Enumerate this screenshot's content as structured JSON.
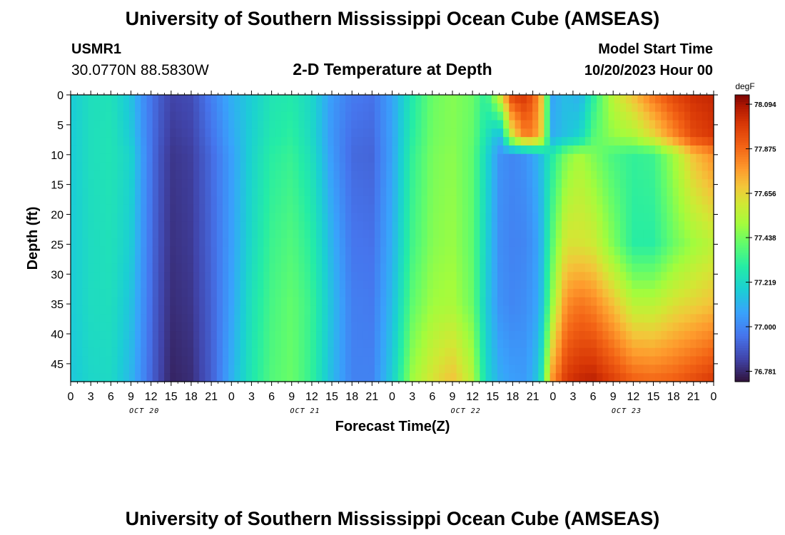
{
  "chart_data": {
    "type": "heatmap",
    "title": "University of Southern Mississippi Ocean Cube (AMSEAS)",
    "subtitle": "2-D Temperature at Depth",
    "station_id": "USMR1",
    "station_location": "30.0770N  88.5830W",
    "model_label": "Model Start Time",
    "model_time": "10/20/2023 Hour 00",
    "xlabel": "Forecast Time(Z)",
    "ylabel": "Depth (ft)",
    "x_hours": [
      0,
      3,
      6,
      9,
      12,
      15,
      18,
      21,
      24,
      27,
      30,
      33,
      36,
      39,
      42,
      45,
      48,
      51,
      54,
      57,
      60,
      63,
      66,
      69,
      72,
      75,
      78,
      81,
      84,
      87,
      90,
      93,
      96
    ],
    "x_tick_labels": [
      "0",
      "3",
      "6",
      "9",
      "12",
      "15",
      "18",
      "21",
      "0",
      "3",
      "6",
      "9",
      "12",
      "15",
      "18",
      "21",
      "0",
      "3",
      "6",
      "9",
      "12",
      "15",
      "18",
      "21",
      "0",
      "3",
      "6",
      "9",
      "12",
      "15",
      "18",
      "21",
      "0"
    ],
    "day_labels": [
      {
        "label": "OCT 20",
        "hour": 11
      },
      {
        "label": "OCT 21",
        "hour": 35
      },
      {
        "label": "OCT 22",
        "hour": 59
      },
      {
        "label": "OCT 23",
        "hour": 83
      }
    ],
    "xlim": [
      0,
      96
    ],
    "y_ticks": [
      0,
      5,
      10,
      15,
      20,
      25,
      30,
      35,
      40,
      45
    ],
    "y_tick_labels": [
      "0",
      "5",
      "10",
      "15",
      "20",
      "25",
      "30",
      "35",
      "40",
      "45"
    ],
    "ylim": [
      0,
      48
    ],
    "colorbar": {
      "units": "degF",
      "ticks": [
        78.094,
        77.875,
        77.656,
        77.438,
        77.219,
        77.0,
        76.781
      ],
      "tick_labels": [
        "78.094",
        "77.875",
        "77.656",
        "77.438",
        "77.219",
        "77.000",
        "76.781"
      ],
      "vmin": 76.73,
      "vmax": 78.14
    },
    "temperature_profile": [
      {
        "hour": 0,
        "values": [
          77.17,
          77.17,
          77.17,
          77.17,
          77.17,
          77.16
        ]
      },
      {
        "hour": 3,
        "values": [
          77.24,
          77.24,
          77.24,
          77.23,
          77.23,
          77.21
        ]
      },
      {
        "hour": 6,
        "values": [
          77.25,
          77.26,
          77.26,
          77.25,
          77.24,
          77.22
        ]
      },
      {
        "hour": 9,
        "values": [
          77.15,
          77.17,
          77.2,
          77.18,
          77.15,
          77.12
        ]
      },
      {
        "hour": 11,
        "values": [
          77.01,
          77.02,
          77.03,
          77.02,
          77.01,
          76.99
        ]
      },
      {
        "hour": 13,
        "values": [
          76.91,
          76.9,
          76.89,
          76.88,
          76.87,
          76.86
        ]
      },
      {
        "hour": 15,
        "values": [
          76.84,
          76.82,
          76.81,
          76.8,
          76.79,
          76.77
        ]
      },
      {
        "hour": 18,
        "values": [
          76.86,
          76.84,
          76.83,
          76.82,
          76.81,
          76.79
        ]
      },
      {
        "hour": 21,
        "values": [
          76.98,
          76.95,
          76.93,
          76.92,
          76.91,
          76.9
        ]
      },
      {
        "hour": 24,
        "values": [
          77.1,
          77.08,
          77.06,
          77.06,
          77.07,
          77.1
        ]
      },
      {
        "hour": 27,
        "values": [
          77.18,
          77.19,
          77.2,
          77.22,
          77.25,
          77.27
        ]
      },
      {
        "hour": 30,
        "values": [
          77.26,
          77.28,
          77.3,
          77.34,
          77.36,
          77.38
        ]
      },
      {
        "hour": 33,
        "values": [
          77.28,
          77.31,
          77.33,
          77.38,
          77.41,
          77.42
        ]
      },
      {
        "hour": 36,
        "values": [
          77.21,
          77.22,
          77.24,
          77.3,
          77.33,
          77.32
        ]
      },
      {
        "hour": 39,
        "values": [
          77.05,
          77.04,
          77.05,
          77.11,
          77.14,
          77.13
        ]
      },
      {
        "hour": 42,
        "values": [
          76.97,
          76.94,
          76.93,
          76.96,
          76.98,
          76.99
        ]
      },
      {
        "hour": 45,
        "values": [
          76.95,
          76.93,
          76.92,
          76.95,
          76.97,
          76.99
        ]
      },
      {
        "hour": 48,
        "values": [
          77.07,
          77.07,
          77.07,
          77.1,
          77.13,
          77.18
        ]
      },
      {
        "hour": 51,
        "values": [
          77.28,
          77.3,
          77.32,
          77.35,
          77.4,
          77.5
        ]
      },
      {
        "hour": 54,
        "values": [
          77.42,
          77.43,
          77.44,
          77.46,
          77.5,
          77.62
        ]
      },
      {
        "hour": 57,
        "values": [
          77.46,
          77.46,
          77.47,
          77.49,
          77.52,
          77.7
        ]
      },
      {
        "hour": 60,
        "values": [
          77.42,
          77.41,
          77.4,
          77.4,
          77.42,
          77.55
        ]
      },
      {
        "hour": 62,
        "values": [
          77.3,
          77.26,
          77.22,
          77.2,
          77.18,
          77.22
        ]
      },
      {
        "hour": 64,
        "values": [
          77.6,
          77.1,
          77.03,
          77.02,
          77.03,
          77.1
        ]
      },
      {
        "hour": 66,
        "values": [
          77.98,
          77.62,
          77.0,
          76.99,
          77.0,
          77.06
        ]
      },
      {
        "hour": 68,
        "values": [
          78.0,
          77.85,
          77.03,
          77.0,
          77.02,
          77.05
        ]
      },
      {
        "hour": 70,
        "values": [
          77.8,
          77.74,
          77.12,
          77.08,
          77.09,
          77.18
        ]
      },
      {
        "hour": 72,
        "values": [
          77.08,
          77.1,
          77.3,
          77.4,
          77.5,
          77.8
        ]
      },
      {
        "hour": 74,
        "values": [
          77.14,
          77.15,
          77.45,
          77.62,
          77.8,
          78.0
        ]
      },
      {
        "hour": 76,
        "values": [
          77.1,
          77.2,
          77.52,
          77.62,
          77.85,
          78.04
        ]
      },
      {
        "hour": 78,
        "values": [
          77.3,
          77.38,
          77.45,
          77.6,
          77.82,
          78.06
        ]
      },
      {
        "hour": 81,
        "values": [
          77.56,
          77.48,
          77.36,
          77.45,
          77.7,
          77.98
        ]
      },
      {
        "hour": 84,
        "values": [
          77.7,
          77.52,
          77.32,
          77.3,
          77.55,
          77.9
        ]
      },
      {
        "hour": 87,
        "values": [
          77.85,
          77.64,
          77.34,
          77.3,
          77.55,
          77.88
        ]
      },
      {
        "hour": 90,
        "values": [
          77.96,
          77.8,
          77.5,
          77.42,
          77.62,
          77.9
        ]
      },
      {
        "hour": 93,
        "values": [
          78.02,
          77.95,
          77.7,
          77.5,
          77.66,
          77.95
        ]
      },
      {
        "hour": 96,
        "values": [
          78.04,
          78.0,
          77.8,
          77.56,
          77.7,
          78.0
        ]
      }
    ],
    "profile_depths_ft": [
      0,
      7,
      10,
      25,
      35,
      48
    ]
  },
  "footer": {
    "title": "University of Southern Mississippi Ocean Cube (AMSEAS)"
  }
}
